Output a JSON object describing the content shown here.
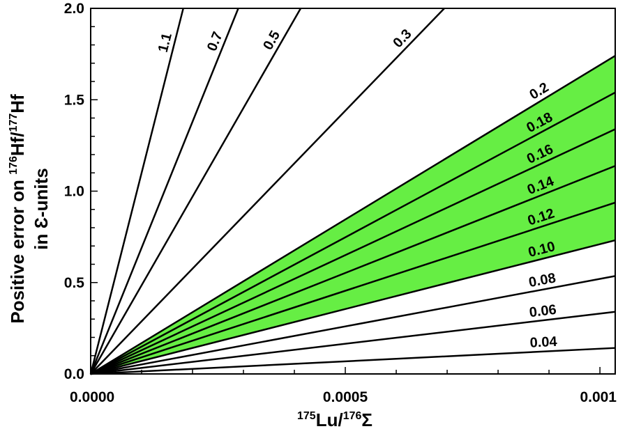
{
  "chart_data": {
    "type": "line",
    "xlabel": {
      "sup": "175",
      "main": "Lu/",
      "sup2": "176",
      "tail": "Σ"
    },
    "ylabel_line1": {
      "pre": "Positive error on ",
      "sup": "176",
      "main": "Hf/",
      "sup2": "177",
      "tail": "Hf"
    },
    "ylabel_line2": "in Ɛ-units",
    "xlim": [
      0,
      0.00103
    ],
    "ylim": [
      0,
      2.0
    ],
    "x_ticks": [
      {
        "value": 0.0,
        "label": "0.0000"
      },
      {
        "value": 0.0005,
        "label": "0.0005"
      },
      {
        "value": 0.001,
        "label": "0.001"
      }
    ],
    "y_ticks": [
      {
        "value": 0.0,
        "label": "0.0"
      },
      {
        "value": 0.5,
        "label": "0.5"
      },
      {
        "value": 1.0,
        "label": "1.0"
      },
      {
        "value": 1.5,
        "label": "1.5"
      },
      {
        "value": 2.0,
        "label": "2.0"
      }
    ],
    "series": [
      {
        "label": "1.1",
        "slope": 11000
      },
      {
        "label": "0.7",
        "slope": 6900
      },
      {
        "label": "0.5",
        "slope": 4850
      },
      {
        "label": "0.3",
        "slope": 2880
      },
      {
        "label": "0.2",
        "slope": 1690
      },
      {
        "label": "0.18",
        "slope": 1495
      },
      {
        "label": "0.16",
        "slope": 1300
      },
      {
        "label": "0.14",
        "slope": 1105
      },
      {
        "label": "0.12",
        "slope": 910
      },
      {
        "label": "0.10",
        "slope": 710
      },
      {
        "label": "0.08",
        "slope": 520
      },
      {
        "label": "0.06",
        "slope": 330
      },
      {
        "label": "0.04",
        "slope": 138
      }
    ],
    "highlight_band": {
      "from": "0.2",
      "to": "0.10",
      "color": "#66ee44"
    },
    "grid": false
  }
}
